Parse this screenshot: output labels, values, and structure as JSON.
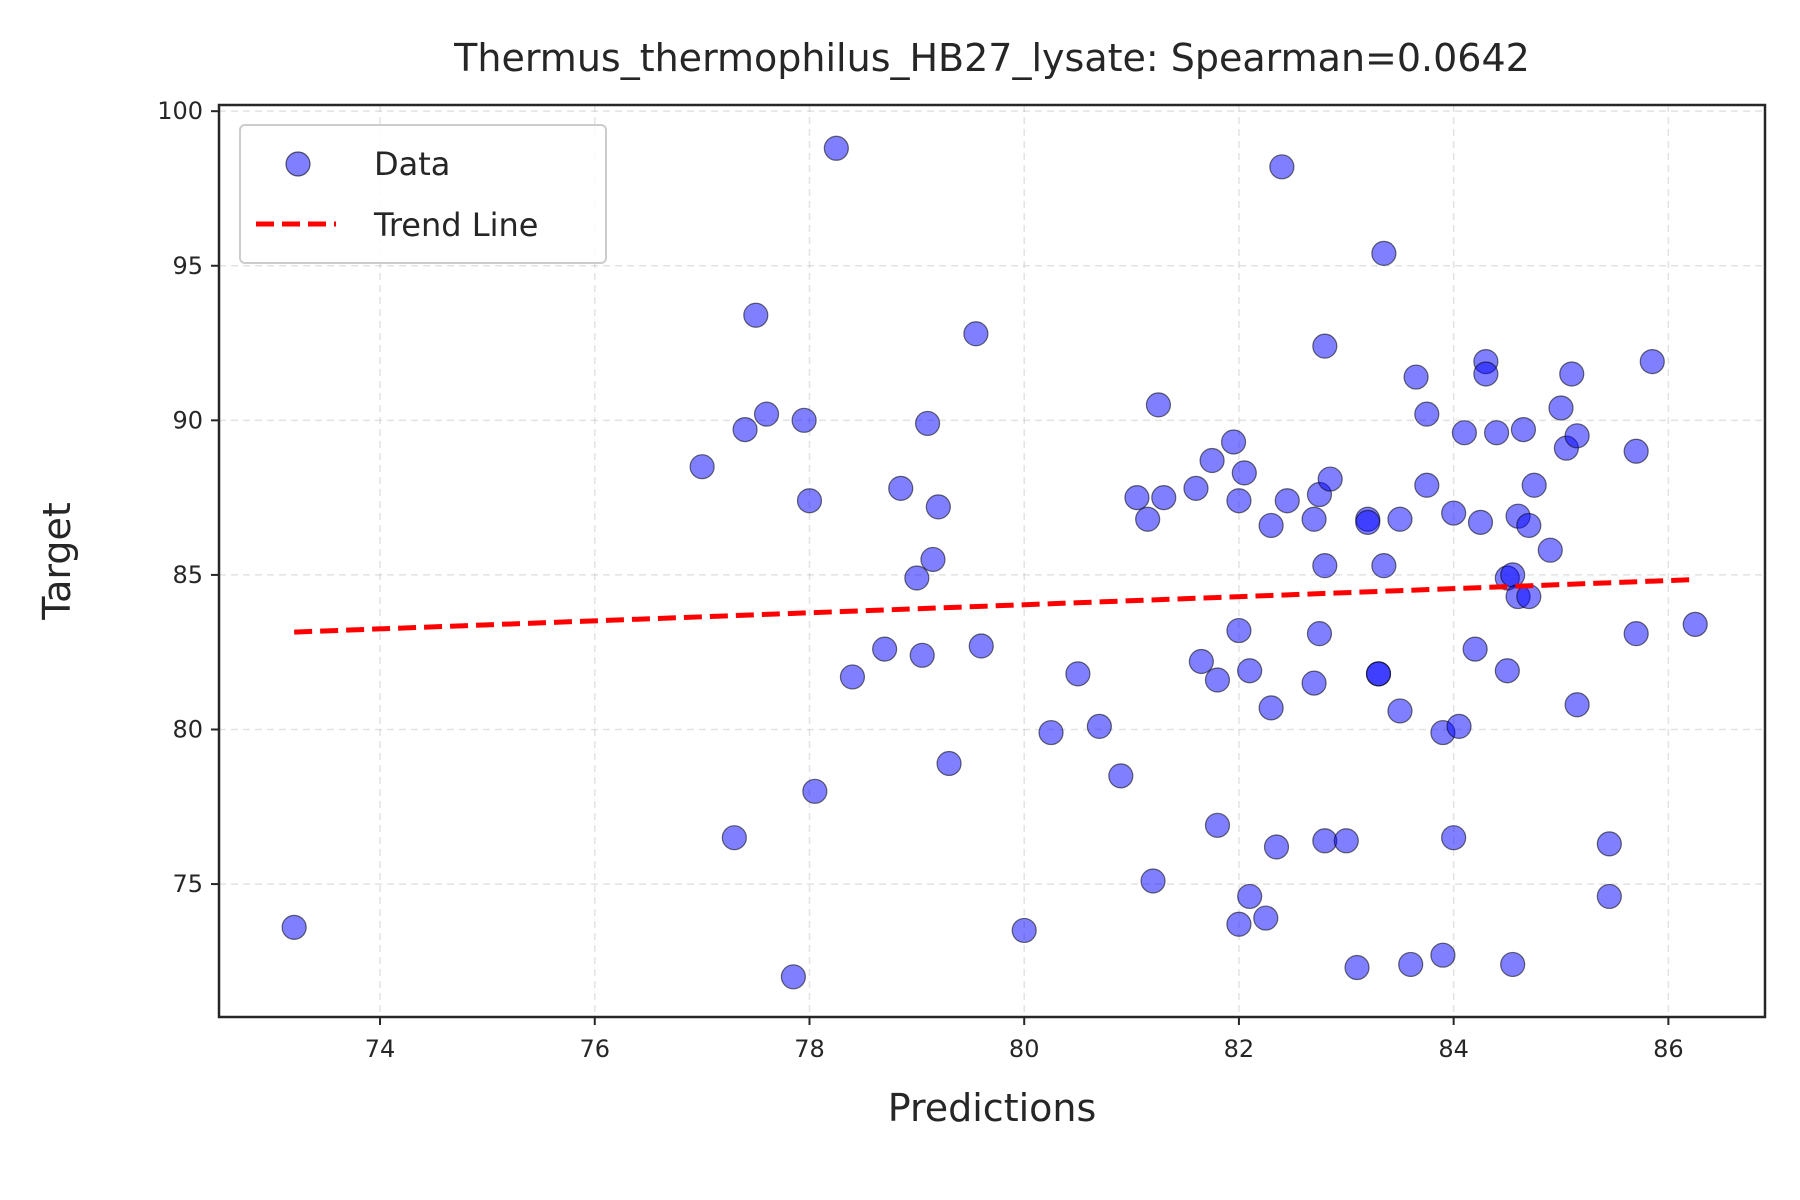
{
  "chart_data": {
    "type": "scatter",
    "title": "Thermus_thermophilus_HB27_lysate: Spearman=0.0642",
    "xlabel": "Predictions",
    "ylabel": "Target",
    "xlim": [
      72.5,
      86.9
    ],
    "ylim": [
      70.7,
      100.2
    ],
    "xticks": [
      74,
      76,
      78,
      80,
      82,
      84,
      86
    ],
    "yticks": [
      75,
      80,
      85,
      90,
      95,
      100
    ],
    "grid": true,
    "legend": {
      "placement": "top-left",
      "entries": [
        "Data",
        "Trend Line"
      ]
    },
    "colors": {
      "points": "#0000ff",
      "trend": "#ff0000"
    },
    "series": [
      {
        "name": "Data",
        "kind": "scatter",
        "points": [
          [
            73.2,
            73.6
          ],
          [
            77.0,
            88.5
          ],
          [
            77.3,
            76.5
          ],
          [
            77.4,
            89.7
          ],
          [
            77.5,
            93.4
          ],
          [
            77.6,
            90.2
          ],
          [
            77.85,
            72.0
          ],
          [
            77.95,
            90.0
          ],
          [
            78.0,
            87.4
          ],
          [
            78.05,
            78.0
          ],
          [
            78.25,
            98.8
          ],
          [
            78.4,
            81.7
          ],
          [
            78.7,
            82.6
          ],
          [
            78.85,
            87.8
          ],
          [
            79.0,
            84.9
          ],
          [
            79.05,
            82.4
          ],
          [
            79.1,
            89.9
          ],
          [
            79.15,
            85.5
          ],
          [
            79.2,
            87.2
          ],
          [
            79.3,
            78.9
          ],
          [
            79.55,
            92.8
          ],
          [
            79.6,
            82.7
          ],
          [
            80.0,
            73.5
          ],
          [
            80.25,
            79.9
          ],
          [
            80.5,
            81.8
          ],
          [
            80.7,
            80.1
          ],
          [
            80.9,
            78.5
          ],
          [
            81.05,
            87.5
          ],
          [
            81.15,
            86.8
          ],
          [
            81.2,
            75.1
          ],
          [
            81.25,
            90.5
          ],
          [
            81.3,
            87.5
          ],
          [
            81.6,
            87.8
          ],
          [
            81.65,
            82.2
          ],
          [
            81.75,
            88.7
          ],
          [
            81.8,
            81.6
          ],
          [
            81.8,
            76.9
          ],
          [
            81.95,
            89.3
          ],
          [
            82.0,
            87.4
          ],
          [
            82.0,
            83.2
          ],
          [
            82.0,
            73.7
          ],
          [
            82.05,
            88.3
          ],
          [
            82.1,
            81.9
          ],
          [
            82.1,
            74.6
          ],
          [
            82.25,
            73.9
          ],
          [
            82.3,
            86.6
          ],
          [
            82.3,
            80.7
          ],
          [
            82.35,
            76.2
          ],
          [
            82.4,
            98.2
          ],
          [
            82.45,
            87.4
          ],
          [
            82.7,
            86.8
          ],
          [
            82.7,
            81.5
          ],
          [
            82.75,
            87.6
          ],
          [
            82.75,
            83.1
          ],
          [
            82.8,
            85.3
          ],
          [
            82.8,
            76.4
          ],
          [
            82.8,
            92.4
          ],
          [
            82.85,
            88.1
          ],
          [
            83.0,
            76.4
          ],
          [
            83.1,
            72.3
          ],
          [
            83.2,
            86.8
          ],
          [
            83.2,
            86.7
          ],
          [
            83.3,
            81.8
          ],
          [
            83.3,
            81.8
          ],
          [
            83.35,
            85.3
          ],
          [
            83.35,
            95.4
          ],
          [
            83.5,
            86.8
          ],
          [
            83.5,
            80.6
          ],
          [
            83.6,
            72.4
          ],
          [
            83.65,
            91.4
          ],
          [
            83.75,
            87.9
          ],
          [
            83.75,
            90.2
          ],
          [
            83.9,
            72.7
          ],
          [
            83.9,
            79.9
          ],
          [
            84.0,
            87.0
          ],
          [
            84.0,
            76.5
          ],
          [
            84.05,
            80.1
          ],
          [
            84.1,
            89.6
          ],
          [
            84.2,
            82.6
          ],
          [
            84.25,
            86.7
          ],
          [
            84.3,
            91.9
          ],
          [
            84.3,
            91.5
          ],
          [
            84.4,
            89.6
          ],
          [
            84.5,
            81.9
          ],
          [
            84.5,
            84.9
          ],
          [
            84.55,
            85.0
          ],
          [
            84.55,
            72.4
          ],
          [
            84.6,
            84.3
          ],
          [
            84.6,
            86.9
          ],
          [
            84.65,
            89.7
          ],
          [
            84.7,
            84.3
          ],
          [
            84.7,
            86.6
          ],
          [
            84.75,
            87.9
          ],
          [
            84.9,
            85.8
          ],
          [
            85.0,
            90.4
          ],
          [
            85.05,
            89.1
          ],
          [
            85.1,
            91.5
          ],
          [
            85.15,
            89.5
          ],
          [
            85.15,
            80.8
          ],
          [
            85.45,
            76.3
          ],
          [
            85.45,
            74.6
          ],
          [
            85.7,
            89.0
          ],
          [
            85.7,
            83.1
          ],
          [
            85.85,
            91.9
          ],
          [
            86.25,
            83.4
          ]
        ]
      },
      {
        "name": "Trend Line",
        "kind": "line",
        "points": [
          [
            73.2,
            83.15
          ],
          [
            86.25,
            84.85
          ]
        ]
      }
    ]
  }
}
